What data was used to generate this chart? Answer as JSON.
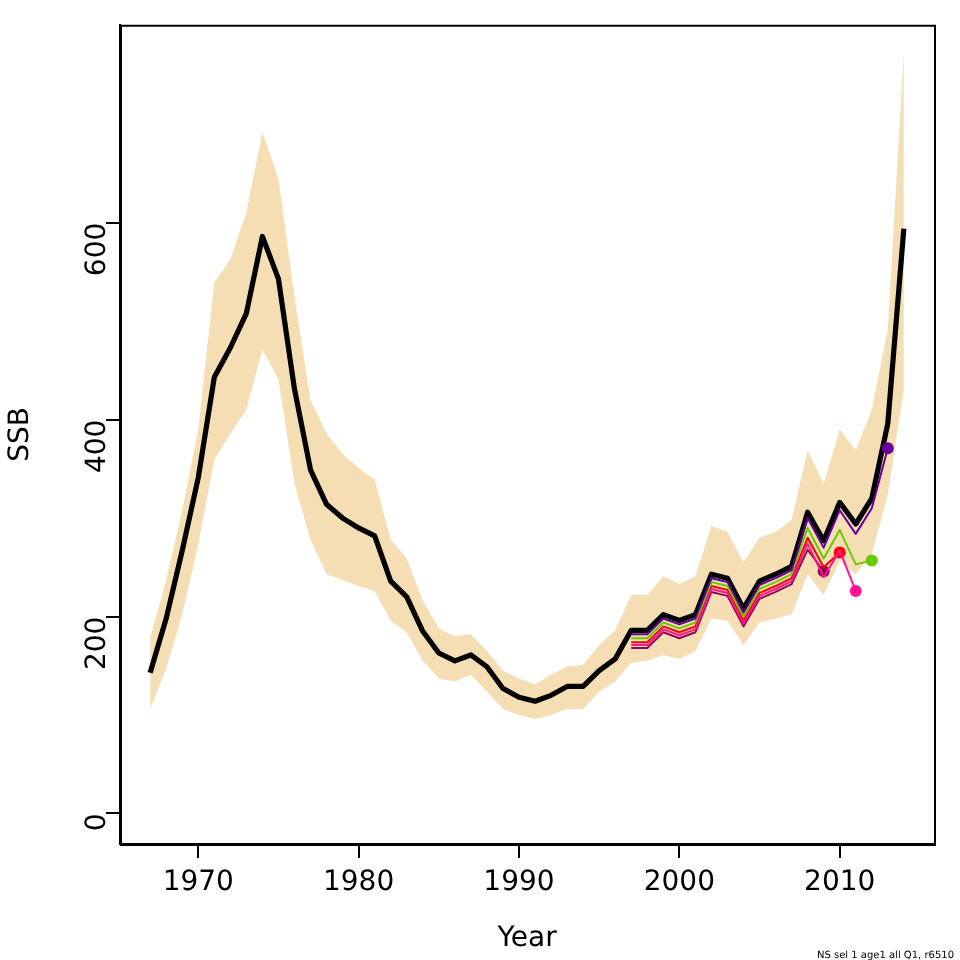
{
  "chart_data": {
    "type": "line",
    "xlabel": "Year",
    "ylabel": "SSB",
    "x": [
      1967,
      1968,
      1969,
      1970,
      1971,
      1972,
      1973,
      1974,
      1975,
      1976,
      1977,
      1978,
      1979,
      1980,
      1981,
      1982,
      1983,
      1984,
      1985,
      1986,
      1987,
      1988,
      1989,
      1990,
      1991,
      1992,
      1993,
      1994,
      1995,
      1996,
      1997,
      1998,
      1999,
      2000,
      2001,
      2002,
      2003,
      2004,
      2005,
      2006,
      2007,
      2008,
      2009,
      2010,
      2011,
      2012,
      2013,
      2014
    ],
    "xlim": [
      1965.12,
      2015.88
    ],
    "xticks": [
      1970,
      1980,
      1990,
      2000,
      2010
    ],
    "ylim": [
      -31,
      801
    ],
    "yticks": [
      0,
      200,
      400,
      600
    ],
    "grid": false,
    "legend": false,
    "series": [
      {
        "color": "#8b0a50",
        "values": [
          null,
          null,
          null,
          null,
          null,
          null,
          null,
          null,
          null,
          null,
          null,
          null,
          null,
          null,
          null,
          null,
          null,
          null,
          null,
          null,
          null,
          null,
          null,
          null,
          null,
          null,
          null,
          null,
          null,
          null,
          168,
          168,
          184,
          178,
          184,
          225,
          221,
          190,
          218,
          225,
          233,
          268,
          246,
          null,
          null,
          null,
          null,
          null
        ]
      },
      {
        "color": "#ff0000",
        "values": [
          null,
          null,
          null,
          null,
          null,
          null,
          null,
          null,
          null,
          null,
          null,
          null,
          null,
          null,
          null,
          null,
          null,
          null,
          null,
          null,
          null,
          null,
          null,
          null,
          null,
          null,
          null,
          null,
          null,
          null,
          174,
          174,
          190,
          184,
          190,
          231,
          227,
          196,
          224,
          231,
          239,
          280,
          250,
          265,
          null,
          null,
          null,
          null
        ]
      },
      {
        "color": "#ff1493",
        "values": [
          null,
          null,
          null,
          null,
          null,
          null,
          null,
          null,
          null,
          null,
          null,
          null,
          null,
          null,
          null,
          null,
          null,
          null,
          null,
          null,
          null,
          null,
          null,
          null,
          null,
          null,
          null,
          null,
          null,
          null,
          171,
          171,
          187,
          181,
          187,
          228,
          224,
          193,
          221,
          228,
          236,
          274,
          240,
          267,
          226,
          null,
          null,
          null
        ]
      },
      {
        "color": "#66cc00",
        "values": [
          null,
          null,
          null,
          null,
          null,
          null,
          null,
          null,
          null,
          null,
          null,
          null,
          null,
          null,
          null,
          null,
          null,
          null,
          null,
          null,
          null,
          null,
          null,
          null,
          null,
          null,
          null,
          null,
          null,
          null,
          178,
          178,
          194,
          188,
          194,
          235,
          231,
          200,
          228,
          235,
          243,
          290,
          259,
          288,
          253,
          257,
          null,
          null
        ]
      },
      {
        "color": "#660099",
        "values": [
          null,
          null,
          null,
          null,
          null,
          null,
          null,
          null,
          null,
          null,
          null,
          null,
          null,
          null,
          null,
          null,
          null,
          null,
          null,
          null,
          null,
          null,
          null,
          null,
          null,
          null,
          null,
          null,
          null,
          null,
          182,
          182,
          198,
          192,
          198,
          239,
          235,
          204,
          232,
          239,
          247,
          300,
          270,
          308,
          284,
          310,
          371,
          null
        ]
      },
      {
        "color": "#000000",
        "values": [
          143,
          198,
          267,
          341,
          443,
          473,
          508,
          586,
          543,
          431,
          349,
          314,
          300,
          290,
          282,
          236,
          220,
          185,
          163,
          155,
          161,
          149,
          127,
          118,
          114,
          120,
          129,
          129,
          145,
          157,
          186,
          186,
          202,
          196,
          202,
          243,
          239,
          208,
          236,
          243,
          251,
          306,
          277,
          316,
          294,
          320,
          396,
          594
        ],
        "lower": [
          106,
          147,
          202,
          273,
          359,
          386,
          410,
          471,
          441,
          335,
          278,
          243,
          237,
          231,
          226,
          196,
          184,
          155,
          137,
          134,
          141,
          124,
          106,
          100,
          96,
          100,
          106,
          106,
          124,
          134,
          153,
          155,
          161,
          157,
          165,
          198,
          196,
          171,
          194,
          198,
          202,
          243,
          222,
          257,
          243,
          263,
          324,
          431
        ],
        "upper": [
          178,
          237,
          308,
          390,
          539,
          563,
          610,
          692,
          645,
          525,
          420,
          386,
          365,
          351,
          339,
          278,
          259,
          216,
          188,
          180,
          182,
          165,
          145,
          137,
          131,
          141,
          149,
          151,
          171,
          186,
          222,
          222,
          241,
          233,
          241,
          292,
          286,
          255,
          280,
          286,
          298,
          369,
          335,
          390,
          369,
          410,
          492,
          773
        ]
      }
    ],
    "annotations": [
      "NS sel 1 age1 all Q1, r6510"
    ]
  }
}
